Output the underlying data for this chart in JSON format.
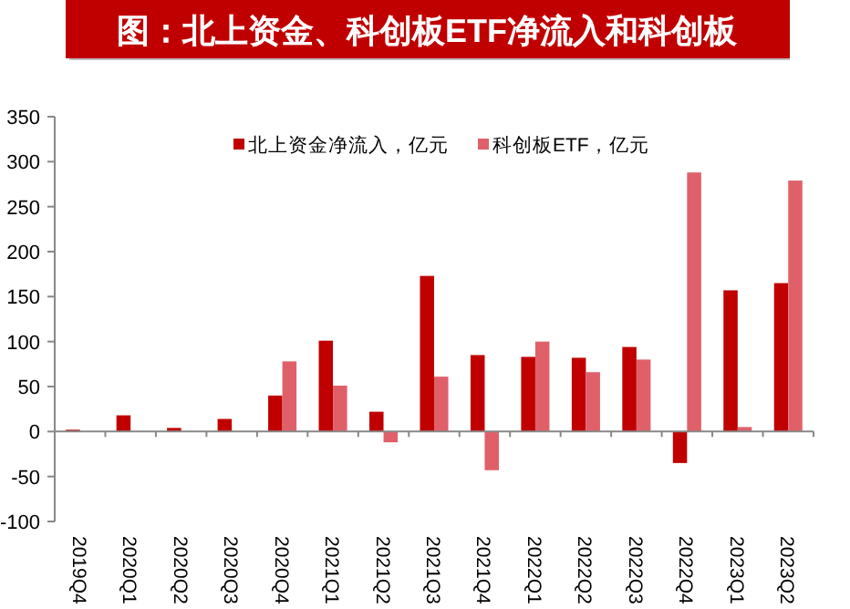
{
  "chart_data": {
    "type": "bar",
    "title": "图：北上资金、科创板ETF净流入和科创板",
    "categories": [
      "2019Q4",
      "2020Q1",
      "2020Q2",
      "2020Q3",
      "2020Q4",
      "2021Q1",
      "2021Q2",
      "2021Q3",
      "2021Q4",
      "2022Q1",
      "2022Q2",
      "2022Q3",
      "2022Q4",
      "2023Q1",
      "2023Q2"
    ],
    "series": [
      {
        "name": "北上资金净流入，亿元",
        "color": "#c00000",
        "values": [
          2,
          18,
          4,
          14,
          40,
          101,
          22,
          173,
          85,
          83,
          82,
          94,
          -35,
          157,
          165
        ]
      },
      {
        "name": "科创板ETF，亿元",
        "color": "#e0606a",
        "values": [
          null,
          null,
          null,
          null,
          78,
          51,
          -12,
          61,
          -43,
          100,
          66,
          80,
          288,
          5,
          279
        ]
      }
    ],
    "ylim": [
      -100,
      350
    ],
    "yticks": [
      -100,
      -50,
      0,
      50,
      100,
      150,
      200,
      250,
      300,
      350
    ],
    "legend": "top"
  }
}
